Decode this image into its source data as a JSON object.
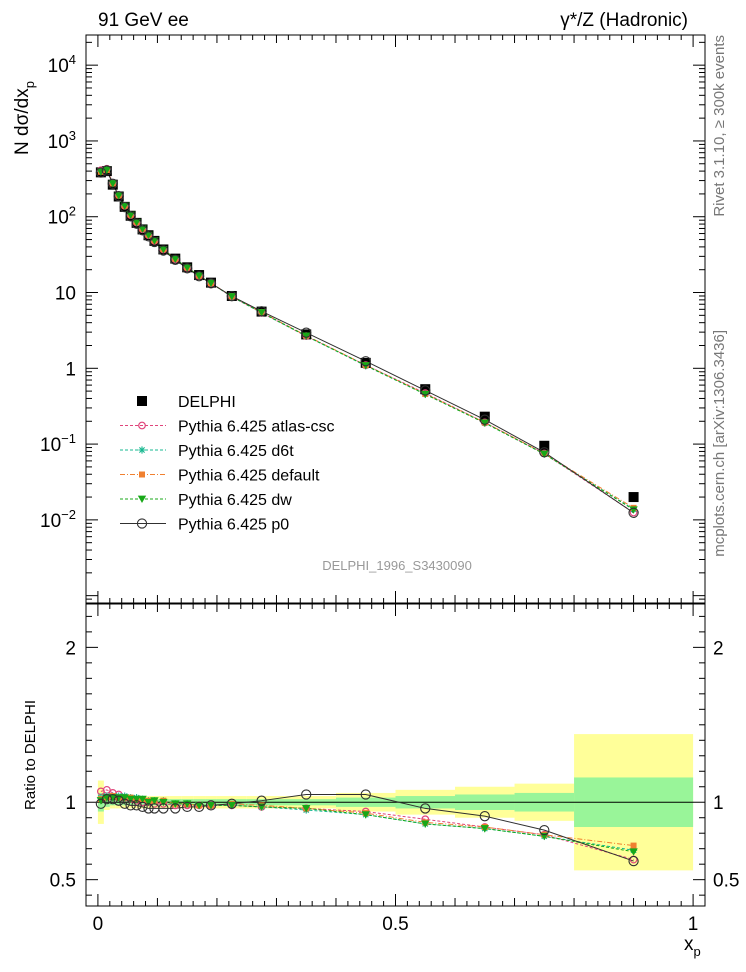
{
  "header": {
    "left": "91 GeV ee",
    "right": "γ*/Z (Hadronic)"
  },
  "side_labels": {
    "rivet": "Rivet 3.1.10, ≥ 300k events",
    "mcplots": "mcplots.cern.ch [arXiv:1306.3436]"
  },
  "analysis_label": "DELPHI_1996_S3430090",
  "colors": {
    "data": "#000000",
    "atlas_csc": "#e0457b",
    "d6t": "#17b890",
    "default": "#f08030",
    "dw": "#18a818",
    "p0": "#303030",
    "band_inner": "#99f599",
    "band_outer": "#ffff99"
  },
  "chart_data": [
    {
      "type": "scatter",
      "panel": "main",
      "ylabel": "N dσ/dx_p",
      "yscale": "log",
      "xlim": [
        -0.02,
        1.02
      ],
      "ylim": [
        0.0008,
        25000
      ],
      "y_ticks": [
        {
          "value": 10000,
          "base": "10",
          "exp": "4"
        },
        {
          "value": 1000,
          "base": "10",
          "exp": "3"
        },
        {
          "value": 100,
          "base": "10",
          "exp": "2"
        },
        {
          "value": 10,
          "base": "10",
          "exp": ""
        },
        {
          "value": 1,
          "base": "1",
          "exp": ""
        },
        {
          "value": 0.1,
          "base": "10",
          "exp": "−1"
        },
        {
          "value": 0.01,
          "base": "10",
          "exp": "−2"
        }
      ],
      "x": [
        0.005,
        0.015,
        0.025,
        0.035,
        0.045,
        0.055,
        0.065,
        0.075,
        0.085,
        0.095,
        0.11,
        0.13,
        0.15,
        0.17,
        0.19,
        0.225,
        0.275,
        0.35,
        0.45,
        0.55,
        0.65,
        0.75,
        0.9
      ],
      "legend_position": "lower-left",
      "series": [
        {
          "name": "DELPHI",
          "key": "data",
          "values": [
            385,
            400,
            265,
            185,
            135,
            103,
            83,
            68,
            57,
            48,
            37,
            28,
            21.5,
            17,
            13.5,
            9.0,
            5.6,
            2.8,
            1.18,
            0.53,
            0.23,
            0.095,
            0.02
          ]
        },
        {
          "name": "Pythia 6.425 atlas-csc",
          "key": "atlas_csc",
          "values": [
            410,
            430,
            280,
            193,
            139,
            105,
            84,
            68.5,
            57,
            48,
            37,
            27.5,
            21.2,
            16.6,
            13.3,
            8.8,
            5.4,
            2.66,
            1.1,
            0.47,
            0.193,
            0.075,
            0.0125
          ]
        },
        {
          "name": "Pythia 6.425 d6t",
          "key": "d6t",
          "values": [
            395,
            415,
            276,
            192,
            140,
            106,
            85,
            69.5,
            57.5,
            48.5,
            37.3,
            27.8,
            21.4,
            16.7,
            13.3,
            8.8,
            5.4,
            2.66,
            1.08,
            0.455,
            0.19,
            0.074,
            0.0138
          ]
        },
        {
          "name": "Pythia 6.425 default",
          "key": "default",
          "values": [
            392,
            413,
            275,
            191,
            139.5,
            106,
            85,
            69.3,
            57.5,
            48.5,
            37.2,
            27.8,
            21.4,
            16.7,
            13.3,
            8.9,
            5.5,
            2.7,
            1.1,
            0.46,
            0.193,
            0.075,
            0.0144
          ]
        },
        {
          "name": "Pythia 6.425 dw",
          "key": "dw",
          "values": [
            390,
            412,
            274,
            190,
            139,
            105.5,
            84.5,
            69,
            57.2,
            48.3,
            37.1,
            27.7,
            21.3,
            16.6,
            13.3,
            8.85,
            5.45,
            2.68,
            1.09,
            0.455,
            0.19,
            0.074,
            0.0136
          ]
        },
        {
          "name": "Pythia 6.425 p0",
          "key": "p0",
          "values": [
            383,
            408,
            272,
            187,
            134,
            101,
            81,
            66,
            55,
            46.5,
            35.8,
            27.0,
            20.8,
            16.4,
            13.2,
            8.95,
            5.65,
            2.95,
            1.24,
            0.51,
            0.21,
            0.078,
            0.0124
          ]
        }
      ]
    },
    {
      "type": "line",
      "panel": "ratio",
      "ylabel": "Ratio to DELPHI",
      "xlabel": "x_p",
      "xlim": [
        -0.02,
        1.02
      ],
      "ylim": [
        0.33,
        2.28
      ],
      "y_ticks": [
        "0.5",
        "1",
        "2"
      ],
      "x_ticks": [
        "0",
        "0.5",
        "1"
      ],
      "x": [
        0.005,
        0.015,
        0.025,
        0.035,
        0.045,
        0.055,
        0.065,
        0.075,
        0.085,
        0.095,
        0.11,
        0.13,
        0.15,
        0.17,
        0.19,
        0.225,
        0.275,
        0.35,
        0.45,
        0.55,
        0.65,
        0.75,
        0.9
      ],
      "bands": {
        "edges": [
          0,
          0.01,
          0.02,
          0.03,
          0.04,
          0.05,
          0.06,
          0.07,
          0.08,
          0.09,
          0.1,
          0.12,
          0.14,
          0.16,
          0.18,
          0.2,
          0.25,
          0.3,
          0.4,
          0.5,
          0.6,
          0.7,
          0.8,
          1.0
        ],
        "inner": [
          0.06,
          0.03,
          0.02,
          0.02,
          0.02,
          0.02,
          0.02,
          0.02,
          0.02,
          0.02,
          0.02,
          0.02,
          0.02,
          0.02,
          0.02,
          0.02,
          0.02,
          0.02,
          0.03,
          0.04,
          0.05,
          0.06,
          0.16
        ],
        "outer": [
          0.14,
          0.05,
          0.04,
          0.04,
          0.04,
          0.04,
          0.04,
          0.04,
          0.04,
          0.04,
          0.04,
          0.04,
          0.04,
          0.04,
          0.04,
          0.04,
          0.04,
          0.04,
          0.06,
          0.08,
          0.1,
          0.12,
          0.44
        ]
      },
      "series": [
        {
          "name": "Pythia 6.425 atlas-csc",
          "key": "atlas_csc",
          "values": [
            1.07,
            1.08,
            1.06,
            1.05,
            1.03,
            1.02,
            1.01,
            1.0,
            1.0,
            0.99,
            0.99,
            0.98,
            0.98,
            0.98,
            0.98,
            0.98,
            0.97,
            0.96,
            0.94,
            0.89,
            0.84,
            0.79,
            0.63
          ]
        },
        {
          "name": "Pythia 6.425 d6t",
          "key": "d6t",
          "values": [
            1.03,
            1.04,
            1.04,
            1.04,
            1.04,
            1.03,
            1.03,
            1.02,
            1.01,
            1.01,
            1.01,
            0.99,
            0.99,
            0.98,
            0.98,
            0.98,
            0.97,
            0.95,
            0.92,
            0.86,
            0.83,
            0.78,
            0.69
          ]
        },
        {
          "name": "Pythia 6.425 default",
          "key": "default",
          "values": [
            1.02,
            1.03,
            1.04,
            1.03,
            1.03,
            1.03,
            1.02,
            1.02,
            1.01,
            1.01,
            1.01,
            0.99,
            0.99,
            0.98,
            0.98,
            0.99,
            0.98,
            0.96,
            0.93,
            0.87,
            0.84,
            0.79,
            0.72
          ]
        },
        {
          "name": "Pythia 6.425 dw",
          "key": "dw",
          "values": [
            1.01,
            1.03,
            1.03,
            1.03,
            1.03,
            1.02,
            1.02,
            1.02,
            1.0,
            1.01,
            1.0,
            0.99,
            0.99,
            0.98,
            0.98,
            0.98,
            0.97,
            0.96,
            0.92,
            0.86,
            0.83,
            0.78,
            0.68
          ]
        },
        {
          "name": "Pythia 6.425 p0",
          "key": "p0",
          "values": [
            0.99,
            1.02,
            1.02,
            1.01,
            0.99,
            0.98,
            0.98,
            0.97,
            0.96,
            0.96,
            0.96,
            0.96,
            0.97,
            0.97,
            0.98,
            0.99,
            1.01,
            1.05,
            1.05,
            0.96,
            0.91,
            0.82,
            0.62
          ]
        }
      ]
    }
  ]
}
